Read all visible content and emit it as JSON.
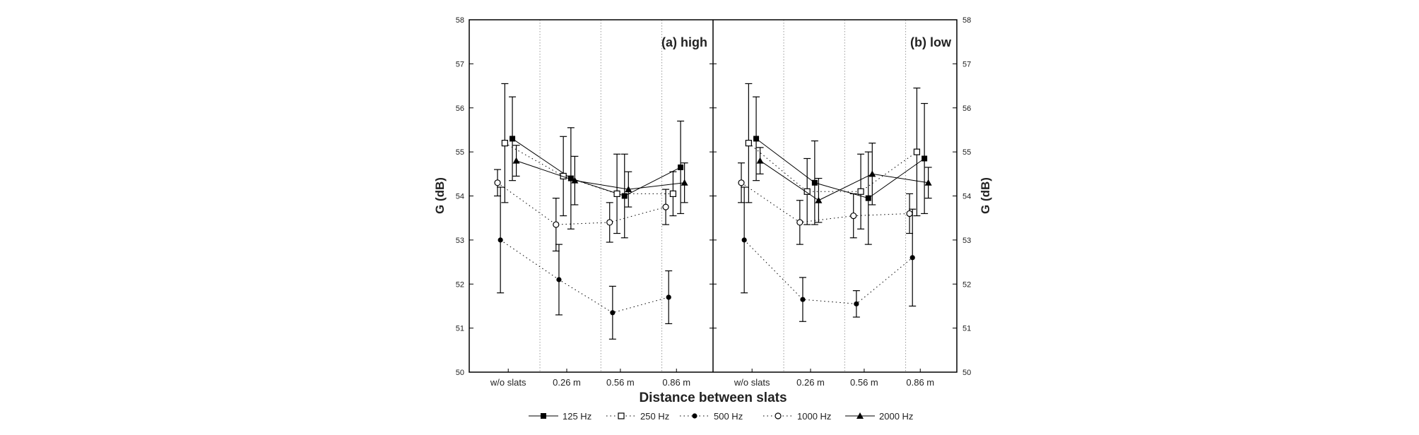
{
  "chart_data": {
    "type": "line",
    "xlabel": "Distance between slats",
    "ylabel": "G (dB)",
    "categories": [
      "w/o slats",
      "0.26 m",
      "0.56 m",
      "0.86 m"
    ],
    "ylim": [
      50,
      58
    ],
    "yticks": [
      50,
      51,
      52,
      53,
      54,
      55,
      56,
      57,
      58
    ],
    "grid": "vertical dotted separators between categories",
    "legend": [
      {
        "name": "125 Hz",
        "line": "solid",
        "marker": "filled-square"
      },
      {
        "name": "250 Hz",
        "line": "dotted",
        "marker": "open-square"
      },
      {
        "name": "500 Hz",
        "line": "dotted",
        "marker": "filled-circle"
      },
      {
        "name": "1000 Hz",
        "line": "dotted",
        "marker": "open-circle"
      },
      {
        "name": "2000 Hz",
        "line": "solid",
        "marker": "filled-triangle"
      }
    ],
    "legend_position": "bottom-center",
    "panels": [
      {
        "title": "(a) high",
        "series": [
          {
            "name": "125 Hz",
            "values": [
              55.3,
              54.4,
              54.0,
              54.65
            ],
            "errors": [
              0.95,
              1.15,
              0.95,
              1.05
            ]
          },
          {
            "name": "250 Hz",
            "values": [
              55.2,
              54.45,
              54.05,
              54.05
            ],
            "errors": [
              1.35,
              0.9,
              0.9,
              0.5
            ]
          },
          {
            "name": "500 Hz",
            "values": [
              53.0,
              52.1,
              51.35,
              51.7
            ],
            "errors": [
              1.2,
              0.8,
              0.6,
              0.6
            ]
          },
          {
            "name": "1000 Hz",
            "values": [
              54.3,
              53.35,
              53.4,
              53.75
            ],
            "errors": [
              0.3,
              0.6,
              0.45,
              0.4
            ]
          },
          {
            "name": "2000 Hz",
            "values": [
              54.8,
              54.35,
              54.15,
              54.3
            ],
            "errors": [
              0.35,
              0.55,
              0.4,
              0.45
            ]
          }
        ]
      },
      {
        "title": "(b) low",
        "series": [
          {
            "name": "125 Hz",
            "values": [
              55.3,
              54.3,
              53.95,
              54.85
            ],
            "errors": [
              0.95,
              0.95,
              1.05,
              1.25
            ]
          },
          {
            "name": "250 Hz",
            "values": [
              55.2,
              54.1,
              54.1,
              55.0
            ],
            "errors": [
              1.35,
              0.75,
              0.85,
              1.45
            ]
          },
          {
            "name": "500 Hz",
            "values": [
              53.0,
              51.65,
              51.55,
              52.6
            ],
            "errors": [
              1.2,
              0.5,
              0.3,
              1.1
            ]
          },
          {
            "name": "1000 Hz",
            "values": [
              54.3,
              53.4,
              53.55,
              53.6
            ],
            "errors": [
              0.45,
              0.5,
              0.5,
              0.45
            ]
          },
          {
            "name": "2000 Hz",
            "values": [
              54.8,
              53.9,
              54.5,
              54.3
            ],
            "errors": [
              0.3,
              0.5,
              0.7,
              0.35
            ]
          }
        ]
      }
    ]
  }
}
